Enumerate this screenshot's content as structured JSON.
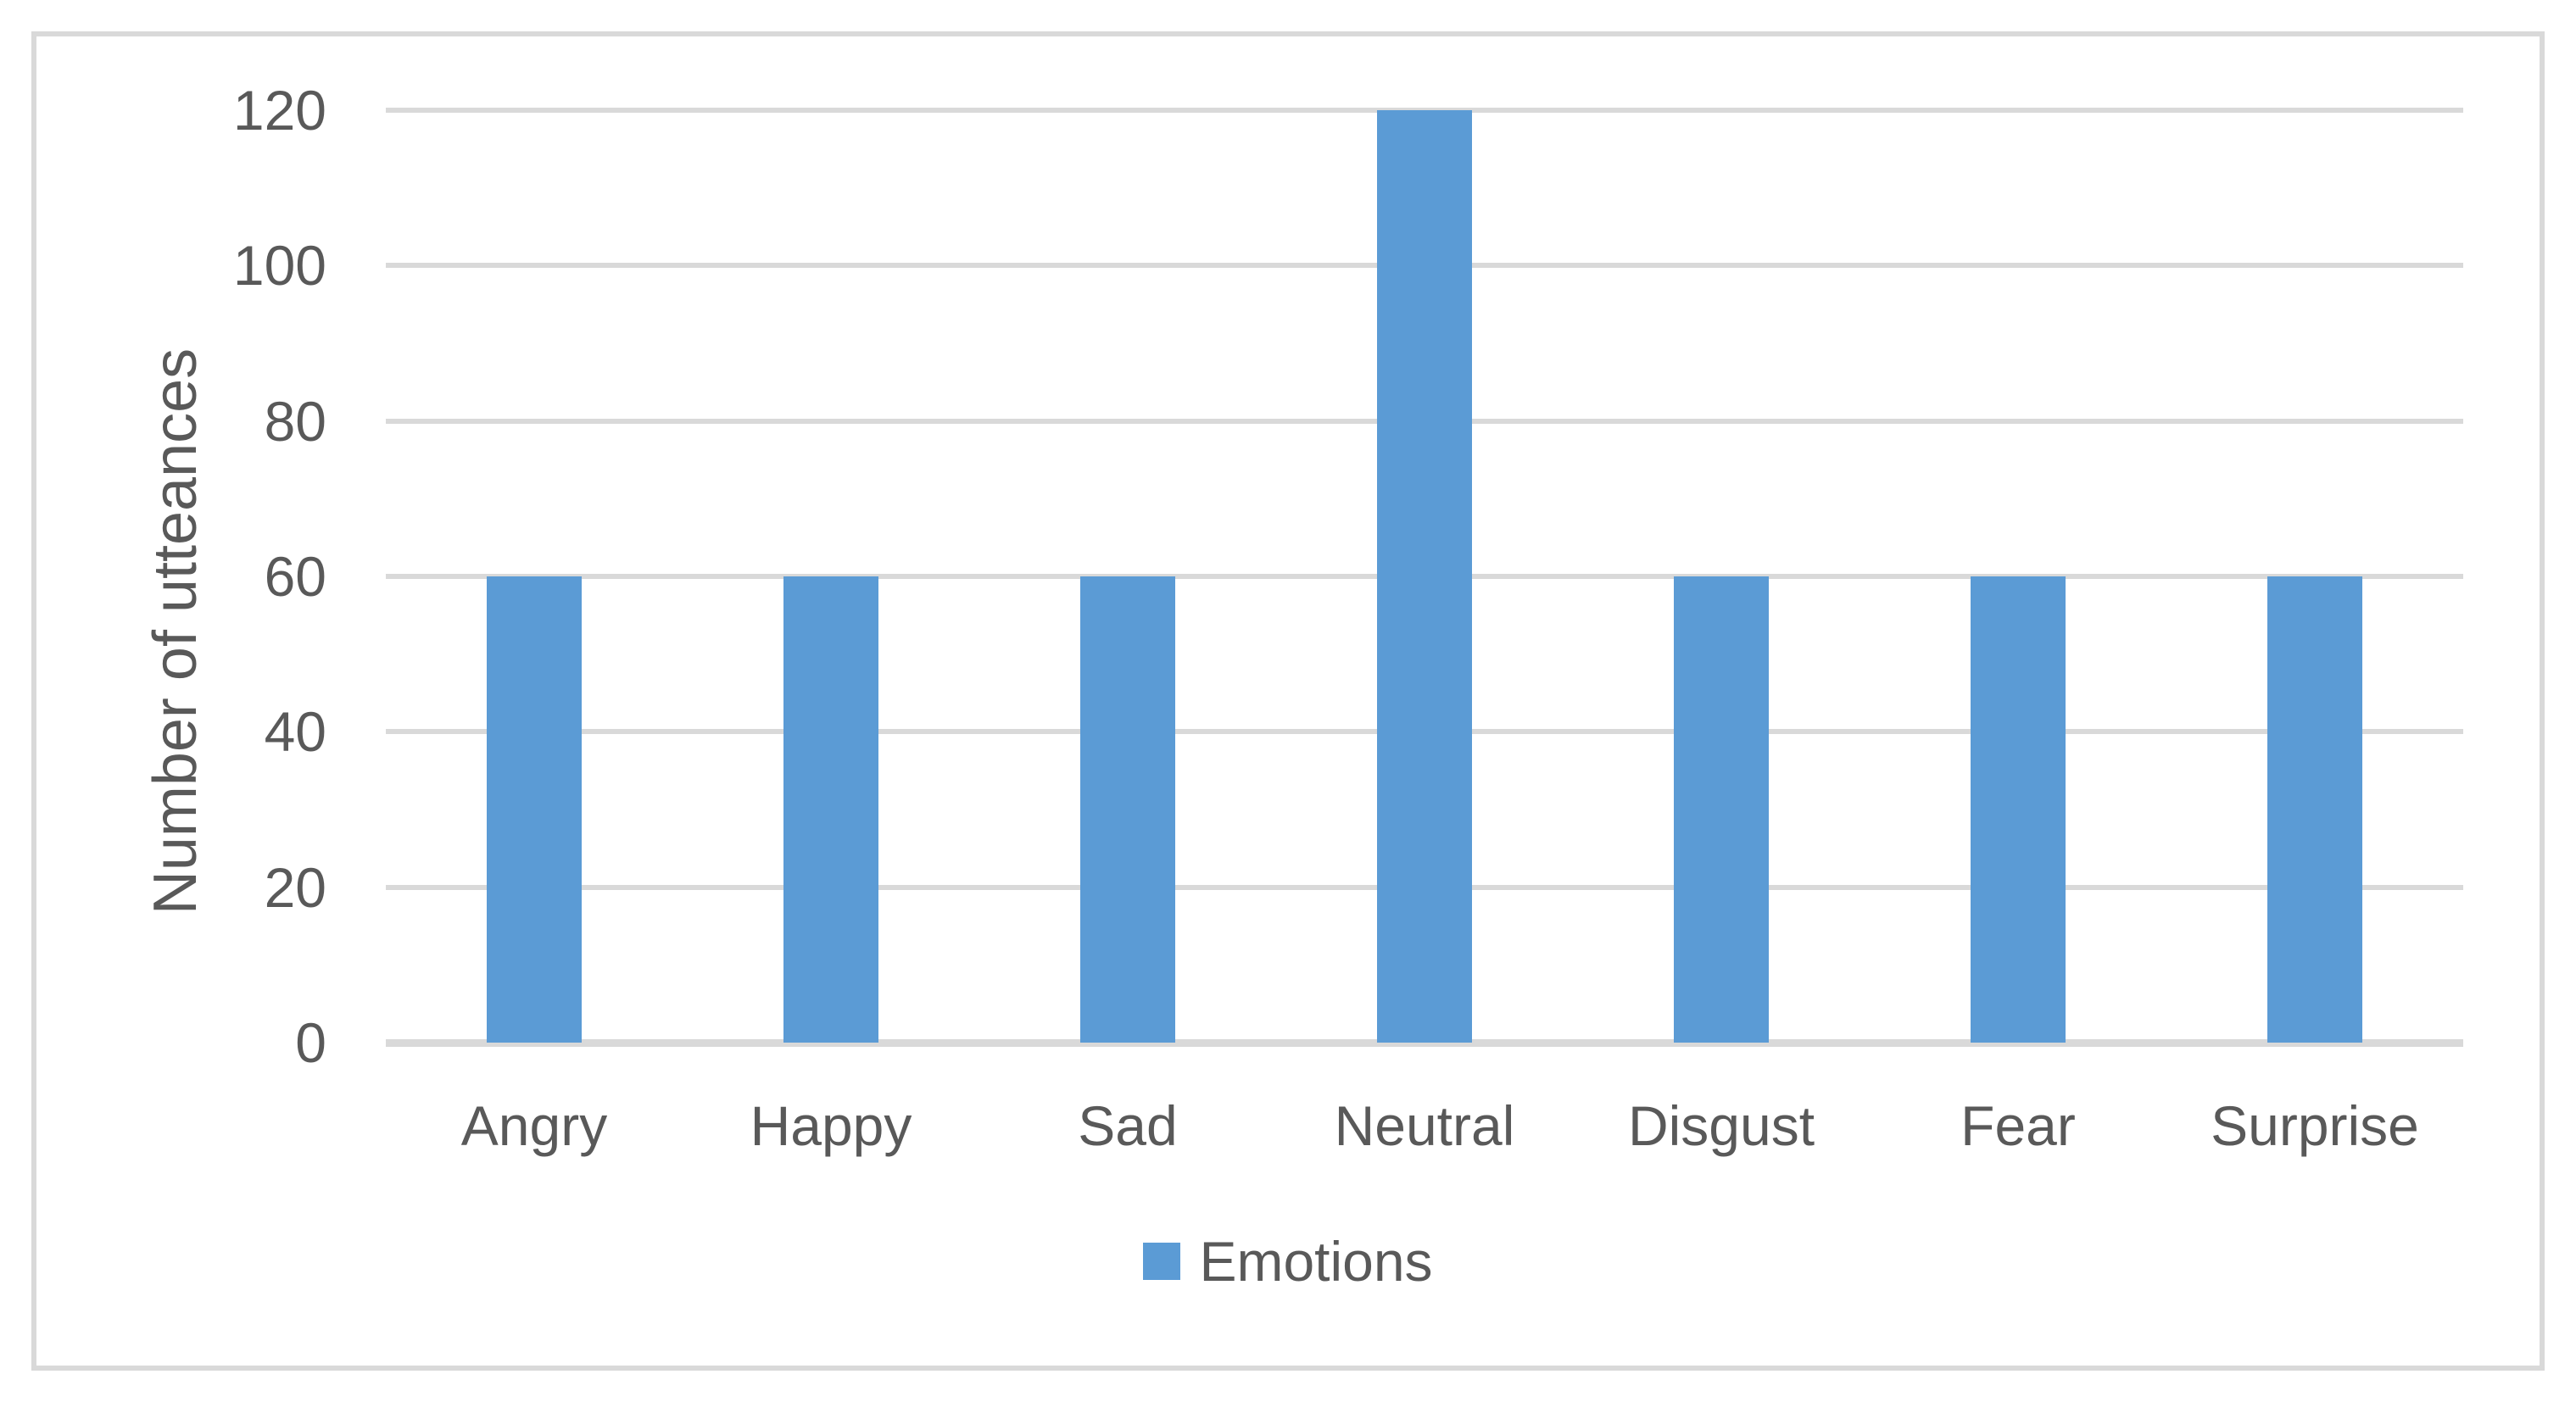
{
  "chart_data": {
    "type": "bar",
    "categories": [
      "Angry",
      "Happy",
      "Sad",
      "Neutral",
      "Disgust",
      "Fear",
      "Surprise"
    ],
    "series": [
      {
        "name": "Emotions",
        "values": [
          60,
          60,
          60,
          120,
          60,
          60,
          60
        ]
      }
    ],
    "title": "",
    "xlabel": "",
    "ylabel": "Number of utteances",
    "ylim": [
      0,
      120
    ],
    "yticks": [
      0,
      20,
      40,
      60,
      80,
      100,
      120
    ],
    "grid": true,
    "legend_position": "bottom-center",
    "colors": {
      "bar": "#5B9BD5",
      "text": "#595959",
      "gridline": "#D9D9D9",
      "frame_border": "#D9D9D9",
      "background": "#FFFFFF"
    }
  },
  "legend": {
    "label": "Emotions"
  }
}
